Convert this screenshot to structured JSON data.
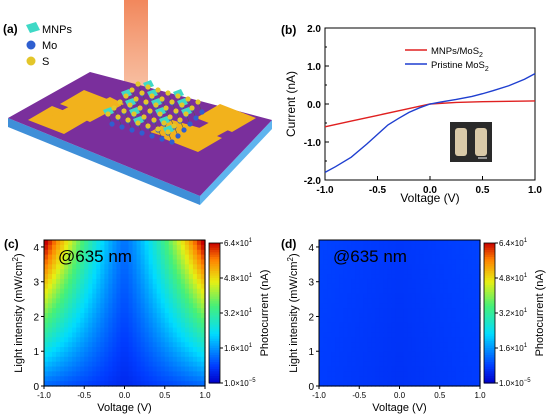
{
  "panels": {
    "a": {
      "label": "(a)",
      "legend": [
        {
          "name": "MNPs",
          "color": "#3fd9c6",
          "icon": "mnp-flake-icon"
        },
        {
          "name": "Mo",
          "color": "#2f5fd0",
          "icon": "mo-atom-icon"
        },
        {
          "name": "S",
          "color": "#e3c62a",
          "icon": "s-atom-icon"
        }
      ],
      "colors": {
        "substrate_top": "#7a2f9c",
        "substrate_side": "#4aa6e6",
        "electrode": "#f2b21c",
        "laser": "#f07a4a"
      }
    },
    "b": {
      "label": "(b)"
    },
    "c": {
      "label": "(c)",
      "annotation": "@635 nm"
    },
    "d": {
      "label": "(d)",
      "annotation": "@635 nm"
    }
  },
  "chart_data": [
    {
      "id": "b",
      "type": "line",
      "xlabel": "Voltage (V)",
      "ylabel": "Current (nA)",
      "xlim": [
        -1.0,
        1.0
      ],
      "ylim": [
        -2.0,
        2.0
      ],
      "xticks": [
        "-1.0",
        "-0.5",
        "0.0",
        "0.5",
        "1.0"
      ],
      "yticks": [
        "-2.0",
        "-1.0",
        "0.0",
        "1.0",
        "2.0"
      ],
      "yticks_minor": [
        "-1.5",
        "-0.5",
        "0.5",
        "1.5"
      ],
      "legend_position": "top-right",
      "series": [
        {
          "name": "MNPs/MoS",
          "name_sub": "2",
          "color": "#e02020",
          "x": [
            -1.0,
            -0.75,
            -0.5,
            -0.25,
            0.0,
            0.25,
            0.5,
            0.75,
            1.0
          ],
          "y": [
            -0.6,
            -0.45,
            -0.3,
            -0.15,
            0.0,
            0.04,
            0.06,
            0.07,
            0.08
          ]
        },
        {
          "name": "Pristine MoS",
          "name_sub": "2",
          "color": "#1f3fd0",
          "x": [
            -1.0,
            -0.9,
            -0.75,
            -0.6,
            -0.5,
            -0.4,
            -0.3,
            -0.2,
            -0.1,
            0.0,
            0.1,
            0.25,
            0.4,
            0.5,
            0.6,
            0.75,
            0.9,
            1.0
          ],
          "y": [
            -1.8,
            -1.65,
            -1.4,
            -1.05,
            -0.8,
            -0.55,
            -0.38,
            -0.22,
            -0.1,
            0.0,
            0.05,
            0.12,
            0.2,
            0.27,
            0.35,
            0.48,
            0.65,
            0.8
          ]
        }
      ]
    },
    {
      "id": "c",
      "type": "heatmap",
      "xlabel": "Voltage (V)",
      "ylabel": "Light intensity (mW/cm",
      "ylabel_sup": "2",
      "ylabel_end": ")",
      "xlim": [
        -1.0,
        1.0
      ],
      "ylim": [
        0,
        4.2
      ],
      "xticks": [
        "-1.0",
        "-0.5",
        "0.0",
        "0.5",
        "1.0"
      ],
      "yticks": [
        "0",
        "1",
        "2",
        "3",
        "4"
      ],
      "colorbar": {
        "label": "Photocurrent (nA)",
        "ticks": [
          "6.4×10",
          "4.8×10",
          "3.2×10",
          "1.6×10",
          "1.0×10"
        ],
        "tick_exp": [
          "1",
          "1",
          "1",
          "1",
          "−5"
        ]
      },
      "max_value_nA": 64
    },
    {
      "id": "d",
      "type": "heatmap",
      "xlabel": "Voltage (V)",
      "ylabel": "Light intensity (mW/cm",
      "ylabel_sup": "2",
      "ylabel_end": ")",
      "xlim": [
        -1.0,
        1.0
      ],
      "ylim": [
        0,
        4.2
      ],
      "xticks": [
        "-1.0",
        "-0.5",
        "0.0",
        "0.5",
        "1.0"
      ],
      "yticks": [
        "0",
        "1",
        "2",
        "3",
        "4"
      ],
      "colorbar": {
        "label": "Photocurrent (nA)",
        "ticks": [
          "6.4×10",
          "4.8×10",
          "3.2×10",
          "1.6×10",
          "1.0×10"
        ],
        "tick_exp": [
          "1",
          "1",
          "1",
          "1",
          "−5"
        ]
      },
      "max_value_nA": 64
    }
  ]
}
